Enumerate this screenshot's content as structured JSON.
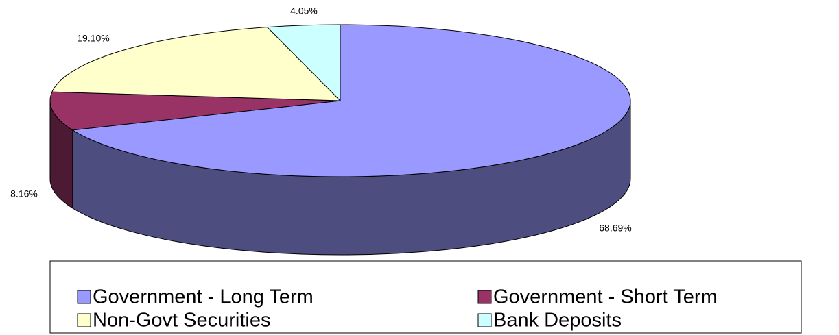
{
  "chart_data": {
    "type": "pie",
    "categories": [
      "Government - Long Term",
      "Government - Short Term",
      "Non-Govt Securities",
      "Bank Deposits"
    ],
    "values": [
      68.69,
      8.16,
      19.1,
      4.05
    ],
    "value_labels": [
      "68.69%",
      "8.16%",
      "19.10%",
      "4.05%"
    ],
    "colors": [
      "#9999ff",
      "#993366",
      "#ffffcc",
      "#ccffff"
    ],
    "legend": "bottom"
  }
}
